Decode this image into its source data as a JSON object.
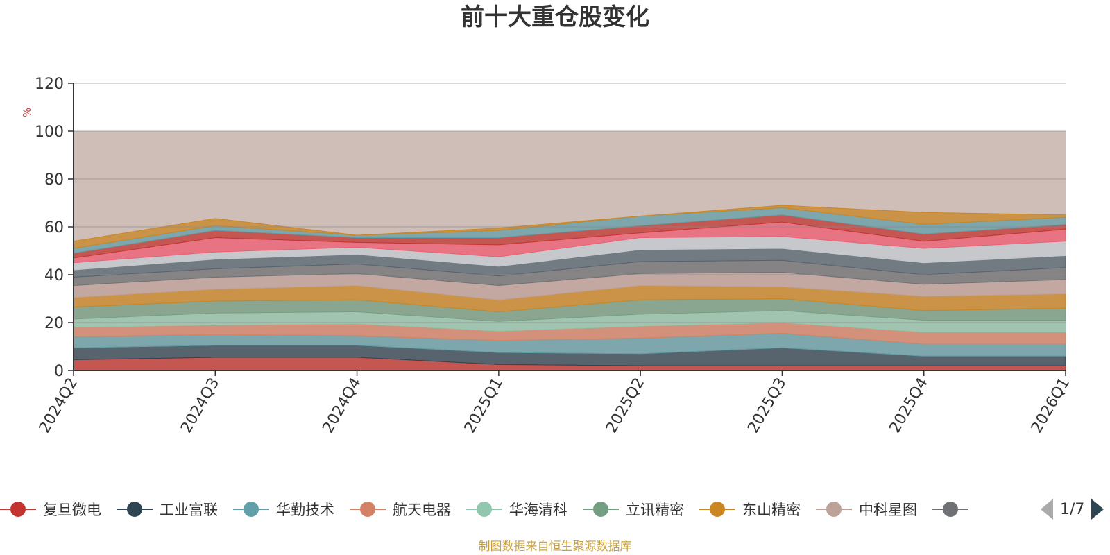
{
  "title": "前十大重仓股变化",
  "source_note": "制图数据来自恒生聚源数据库",
  "pager": {
    "text": "1/7",
    "prev_icon": "triangle-left-icon",
    "next_icon": "triangle-right-icon"
  },
  "chart_data": {
    "type": "area",
    "stacked": true,
    "title": "前十大重仓股变化",
    "xlabel": "",
    "ylabel": "%",
    "ylim": [
      0,
      120
    ],
    "yticks": [
      0,
      20,
      40,
      60,
      80,
      100,
      120
    ],
    "x": [
      "2024Q2",
      "2024Q3",
      "2024Q4",
      "2025Q1",
      "2025Q2",
      "2025Q3",
      "2025Q4",
      "2026Q1"
    ],
    "grid": true,
    "legend_position": "bottom",
    "background_band": {
      "from": 0,
      "to": 100,
      "color": "#cfbdb7"
    },
    "series": [
      {
        "name": "复旦微电",
        "color": "#c23531",
        "values": [
          4.5,
          5.5,
          5.5,
          2.5,
          2,
          2,
          2,
          2
        ]
      },
      {
        "name": "工业富联",
        "color": "#2f4554",
        "values": [
          5,
          5,
          5,
          5,
          5,
          7.5,
          4,
          4
        ]
      },
      {
        "name": "华勤技术",
        "color": "#61a0a8",
        "values": [
          4.5,
          4.5,
          4,
          5,
          6.5,
          6,
          5,
          5
        ]
      },
      {
        "name": "航天电器",
        "color": "#d48265",
        "values": [
          4,
          4,
          5,
          4,
          5,
          4.5,
          5,
          5
        ]
      },
      {
        "name": "华海清科",
        "color": "#91c7ae",
        "values": [
          3.5,
          5,
          5,
          4,
          5,
          5,
          5,
          5
        ]
      },
      {
        "name": "立讯精密",
        "color": "#749f83",
        "values": [
          5,
          5,
          5,
          4,
          6,
          5,
          4,
          5
        ]
      },
      {
        "name": "东山精密",
        "color": "#ca8622",
        "values": [
          4,
          5,
          6,
          5,
          6,
          5,
          6,
          6
        ]
      },
      {
        "name": "中科星图",
        "color": "#bda29a",
        "values": [
          5,
          5,
          5,
          6,
          5,
          6,
          5,
          6
        ]
      },
      {
        "name": "",
        "color": "#6e7074",
        "values": [
          3.5,
          3.5,
          4,
          4,
          5,
          5,
          4,
          5
        ]
      },
      {
        "name": "",
        "color": "#546570",
        "values": [
          3,
          4,
          4,
          4,
          5,
          5,
          5,
          5
        ]
      },
      {
        "name": "",
        "color": "#c4ccd3",
        "values": [
          3,
          3,
          3,
          4,
          5,
          5,
          6,
          6
        ]
      },
      {
        "name": "",
        "color": "#f05b72",
        "values": [
          2,
          6,
          2,
          5,
          2,
          6,
          3,
          5
        ]
      },
      {
        "name": "",
        "color": "#c23531",
        "values": [
          2,
          3,
          2,
          3,
          3,
          3,
          3,
          2
        ]
      },
      {
        "name": "",
        "color": "#61a0a8",
        "values": [
          2,
          2,
          1,
          3,
          4,
          3,
          4,
          3
        ]
      },
      {
        "name": "",
        "color": "#ca8622",
        "values": [
          3,
          3,
          0,
          1,
          0,
          1,
          5,
          1
        ]
      }
    ]
  },
  "legend_items": [
    {
      "name": "复旦微电",
      "color": "#c23531"
    },
    {
      "name": "工业富联",
      "color": "#2f4554"
    },
    {
      "name": "华勤技术",
      "color": "#61a0a8"
    },
    {
      "name": "航天电器",
      "color": "#d48265"
    },
    {
      "name": "华海清科",
      "color": "#91c7ae"
    },
    {
      "name": "立讯精密",
      "color": "#749f83"
    },
    {
      "name": "东山精密",
      "color": "#ca8622"
    },
    {
      "name": "中科星图",
      "color": "#bda29a"
    },
    {
      "name": "",
      "color": "#6e7074"
    }
  ]
}
